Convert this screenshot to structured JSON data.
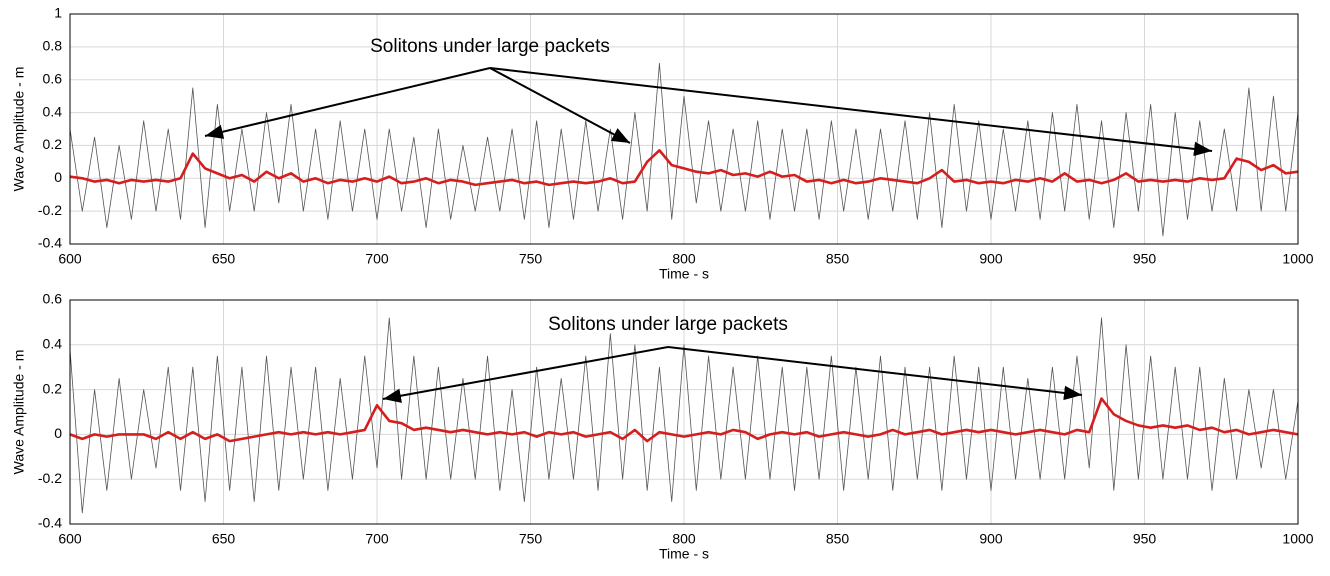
{
  "chart_data": [
    {
      "type": "line",
      "xlabel": "Time - s",
      "ylabel": "Wave Amplitude - m",
      "annotation": "Solitons under large packets",
      "xlim": [
        600,
        1000
      ],
      "xticks": [
        600,
        650,
        700,
        750,
        800,
        850,
        900,
        950,
        1000
      ],
      "ylim": [
        -0.4,
        1
      ],
      "yticks": [
        -0.4,
        -0.2,
        0,
        0.2,
        0.4,
        0.6,
        0.8,
        1
      ],
      "grid": true,
      "x": [
        600,
        604,
        608,
        612,
        616,
        620,
        624,
        628,
        632,
        636,
        640,
        644,
        648,
        652,
        656,
        660,
        664,
        668,
        672,
        676,
        680,
        684,
        688,
        692,
        696,
        700,
        704,
        708,
        712,
        716,
        720,
        724,
        728,
        732,
        736,
        740,
        744,
        748,
        752,
        756,
        760,
        764,
        768,
        772,
        776,
        780,
        784,
        788,
        792,
        796,
        800,
        804,
        808,
        812,
        816,
        820,
        824,
        828,
        832,
        836,
        840,
        844,
        848,
        852,
        856,
        860,
        864,
        868,
        872,
        876,
        880,
        884,
        888,
        892,
        896,
        900,
        904,
        908,
        912,
        916,
        920,
        924,
        928,
        932,
        936,
        940,
        944,
        948,
        952,
        956,
        960,
        964,
        968,
        972,
        976,
        980,
        984,
        988,
        992,
        996,
        1000
      ],
      "series": [
        {
          "color": "#555555",
          "values": [
            0.3,
            -0.2,
            0.25,
            -0.3,
            0.2,
            -0.25,
            0.35,
            -0.2,
            0.3,
            -0.25,
            0.55,
            -0.3,
            0.45,
            -0.2,
            0.3,
            -0.2,
            0.4,
            -0.15,
            0.45,
            -0.2,
            0.3,
            -0.25,
            0.35,
            -0.2,
            0.3,
            -0.25,
            0.3,
            -0.2,
            0.25,
            -0.3,
            0.3,
            -0.25,
            0.2,
            -0.2,
            0.25,
            -0.2,
            0.3,
            -0.25,
            0.35,
            -0.3,
            0.3,
            -0.25,
            0.35,
            -0.2,
            0.3,
            -0.25,
            0.4,
            -0.2,
            0.7,
            -0.25,
            0.5,
            -0.15,
            0.35,
            -0.2,
            0.3,
            -0.2,
            0.35,
            -0.25,
            0.3,
            -0.2,
            0.3,
            -0.25,
            0.35,
            -0.2,
            0.3,
            -0.25,
            0.3,
            -0.2,
            0.35,
            -0.25,
            0.4,
            -0.3,
            0.45,
            -0.2,
            0.35,
            -0.25,
            0.3,
            -0.2,
            0.35,
            -0.25,
            0.4,
            -0.2,
            0.45,
            -0.25,
            0.35,
            -0.3,
            0.4,
            -0.2,
            0.45,
            -0.35,
            0.4,
            -0.25,
            0.35,
            -0.2,
            0.3,
            -0.2,
            0.55,
            -0.2,
            0.5,
            -0.2,
            0.4
          ]
        },
        {
          "color": "#d71e1e",
          "values": [
            0.01,
            0,
            -0.02,
            -0.01,
            -0.03,
            -0.01,
            -0.02,
            -0.01,
            -0.02,
            0,
            0.15,
            0.06,
            0.03,
            0,
            0.02,
            -0.02,
            0.04,
            0,
            0.03,
            -0.02,
            0,
            -0.03,
            -0.01,
            -0.02,
            0,
            -0.02,
            0.01,
            -0.03,
            -0.02,
            0,
            -0.03,
            -0.01,
            -0.02,
            -0.04,
            -0.03,
            -0.02,
            -0.01,
            -0.03,
            -0.02,
            -0.04,
            -0.03,
            -0.02,
            -0.03,
            -0.02,
            0,
            -0.03,
            -0.02,
            0.1,
            0.17,
            0.08,
            0.06,
            0.04,
            0.03,
            0.05,
            0.02,
            0.03,
            0.01,
            0.04,
            0.01,
            0.02,
            -0.02,
            -0.01,
            -0.03,
            -0.01,
            -0.03,
            -0.02,
            0,
            -0.01,
            -0.02,
            -0.03,
            0,
            0.05,
            -0.02,
            -0.01,
            -0.03,
            -0.02,
            -0.03,
            -0.01,
            -0.02,
            0,
            -0.02,
            0.03,
            -0.02,
            -0.01,
            -0.03,
            -0.01,
            0.03,
            -0.02,
            -0.01,
            -0.02,
            -0.01,
            -0.02,
            0,
            -0.01,
            0,
            0.12,
            0.1,
            0.05,
            0.08,
            0.03,
            0.04
          ]
        }
      ]
    },
    {
      "type": "line",
      "xlabel": "Time - s",
      "ylabel": "Wave Amplitude - m",
      "annotation": "Solitons under large packets",
      "xlim": [
        600,
        1000
      ],
      "xticks": [
        600,
        650,
        700,
        750,
        800,
        850,
        900,
        950,
        1000
      ],
      "ylim": [
        -0.4,
        0.6
      ],
      "yticks": [
        -0.4,
        -0.2,
        0,
        0.2,
        0.4,
        0.6
      ],
      "grid": true,
      "x": [
        600,
        604,
        608,
        612,
        616,
        620,
        624,
        628,
        632,
        636,
        640,
        644,
        648,
        652,
        656,
        660,
        664,
        668,
        672,
        676,
        680,
        684,
        688,
        692,
        696,
        700,
        704,
        708,
        712,
        716,
        720,
        724,
        728,
        732,
        736,
        740,
        744,
        748,
        752,
        756,
        760,
        764,
        768,
        772,
        776,
        780,
        784,
        788,
        792,
        796,
        800,
        804,
        808,
        812,
        816,
        820,
        824,
        828,
        832,
        836,
        840,
        844,
        848,
        852,
        856,
        860,
        864,
        868,
        872,
        876,
        880,
        884,
        888,
        892,
        896,
        900,
        904,
        908,
        912,
        916,
        920,
        924,
        928,
        932,
        936,
        940,
        944,
        948,
        952,
        956,
        960,
        964,
        968,
        972,
        976,
        980,
        984,
        988,
        992,
        996,
        1000
      ],
      "series": [
        {
          "color": "#555555",
          "values": [
            0.38,
            -0.35,
            0.2,
            -0.25,
            0.25,
            -0.2,
            0.2,
            -0.15,
            0.3,
            -0.25,
            0.3,
            -0.3,
            0.35,
            -0.25,
            0.3,
            -0.3,
            0.35,
            -0.25,
            0.3,
            -0.2,
            0.3,
            -0.25,
            0.25,
            -0.2,
            0.35,
            -0.15,
            0.52,
            -0.2,
            0.35,
            -0.2,
            0.3,
            -0.2,
            0.25,
            -0.2,
            0.35,
            -0.25,
            0.2,
            -0.3,
            0.3,
            -0.2,
            0.25,
            -0.2,
            0.35,
            -0.25,
            0.45,
            -0.2,
            0.4,
            -0.25,
            0.3,
            -0.3,
            0.4,
            -0.25,
            0.35,
            -0.2,
            0.3,
            -0.2,
            0.35,
            -0.2,
            0.3,
            -0.25,
            0.3,
            -0.2,
            0.35,
            -0.25,
            0.3,
            -0.2,
            0.35,
            -0.25,
            0.3,
            -0.2,
            0.3,
            -0.25,
            0.35,
            -0.2,
            0.3,
            -0.25,
            0.3,
            -0.2,
            0.25,
            -0.2,
            0.3,
            -0.2,
            0.35,
            -0.15,
            0.52,
            -0.25,
            0.4,
            -0.2,
            0.35,
            -0.2,
            0.3,
            -0.2,
            0.3,
            -0.25,
            0.25,
            -0.2,
            0.2,
            -0.15,
            0.2,
            -0.2,
            0.15
          ]
        },
        {
          "color": "#d71e1e",
          "values": [
            0,
            -0.02,
            0,
            -0.01,
            0,
            0,
            0,
            -0.02,
            0.01,
            -0.02,
            0.01,
            -0.02,
            0,
            -0.03,
            -0.02,
            -0.01,
            0,
            0.01,
            0,
            0.01,
            0,
            0.01,
            0,
            0.01,
            0.02,
            0.13,
            0.06,
            0.05,
            0.02,
            0.03,
            0.02,
            0.01,
            0.02,
            0.01,
            0,
            0.01,
            0,
            0.01,
            -0.01,
            0.01,
            0,
            0.01,
            -0.01,
            0,
            0.01,
            -0.02,
            0.02,
            -0.03,
            0.01,
            0,
            -0.01,
            0,
            0.01,
            0,
            0.02,
            0.01,
            -0.02,
            0,
            0.01,
            0,
            0.01,
            -0.01,
            0,
            0.01,
            0,
            -0.01,
            0,
            0.02,
            0,
            0.01,
            0.02,
            0,
            0.01,
            0.02,
            0.01,
            0.02,
            0.01,
            0,
            0.01,
            0.02,
            0.01,
            0,
            0.02,
            0.01,
            0.16,
            0.09,
            0.06,
            0.04,
            0.03,
            0.04,
            0.03,
            0.04,
            0.02,
            0.03,
            0.01,
            0.02,
            0,
            0.01,
            0.02,
            0.01,
            0
          ]
        }
      ]
    }
  ]
}
